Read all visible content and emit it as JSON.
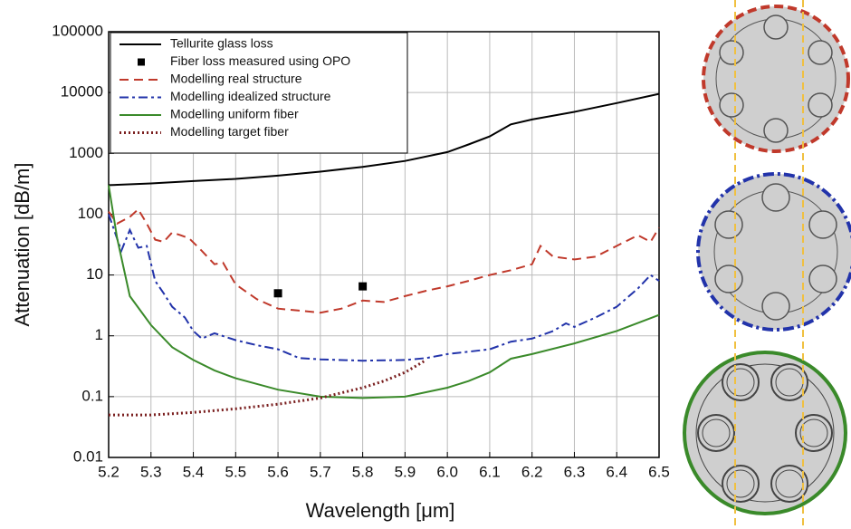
{
  "chart_data": {
    "type": "line",
    "xlabel": "Wavelength [μm]",
    "ylabel": "Attenuation [dB/m]",
    "xlim": [
      5.2,
      6.5
    ],
    "xticks": [
      5.2,
      5.3,
      5.4,
      5.5,
      5.6,
      5.7,
      5.8,
      5.9,
      {
        "value": 6,
        "label": "6.0"
      },
      6.1,
      6.2,
      6.3,
      6.4,
      6.5
    ],
    "ylim": [
      0.01,
      100000
    ],
    "ylog": true,
    "yticks": [
      0.01,
      0.1,
      1,
      10,
      100,
      1000,
      10000,
      100000
    ],
    "grid": true,
    "legend": "upper left",
    "series": [
      {
        "name": "Tellurite glass loss",
        "color": "#000000",
        "style": "solid",
        "x": [
          5.2,
          5.3,
          5.4,
          5.5,
          5.6,
          5.7,
          5.8,
          5.9,
          6.0,
          6.05,
          6.1,
          6.15,
          6.2,
          6.3,
          6.4,
          6.5
        ],
        "values": [
          300,
          320,
          350,
          380,
          430,
          500,
          600,
          750,
          1050,
          1400,
          1900,
          3000,
          3600,
          4800,
          6700,
          9500
        ]
      },
      {
        "name": "Fiber loss measured using OPO",
        "color": "#000000",
        "style": "marker",
        "x": [
          5.6,
          5.8
        ],
        "values": [
          5,
          6.5
        ]
      },
      {
        "name": "Modelling real structure",
        "color": "#c0392b",
        "style": "dashed",
        "x": [
          5.2,
          5.22,
          5.25,
          5.27,
          5.29,
          5.31,
          5.33,
          5.35,
          5.37,
          5.39,
          5.42,
          5.45,
          5.47,
          5.5,
          5.55,
          5.6,
          5.65,
          5.7,
          5.75,
          5.8,
          5.85,
          5.9,
          5.95,
          6.0,
          6.05,
          6.1,
          6.15,
          6.2,
          6.22,
          6.25,
          6.3,
          6.35,
          6.4,
          6.45,
          6.48,
          6.5
        ],
        "values": [
          110,
          70,
          90,
          120,
          70,
          38,
          35,
          50,
          45,
          40,
          25,
          15,
          16,
          7,
          4,
          2.8,
          2.6,
          2.4,
          2.8,
          3.8,
          3.6,
          4.5,
          5.5,
          6.5,
          8,
          10,
          12,
          15,
          30,
          20,
          18,
          20,
          30,
          45,
          35,
          60
        ]
      },
      {
        "name": "Modelling idealized structure",
        "color": "#2233aa",
        "style": "dash-dot",
        "x": [
          5.2,
          5.23,
          5.25,
          5.27,
          5.29,
          5.31,
          5.33,
          5.35,
          5.38,
          5.4,
          5.42,
          5.45,
          5.5,
          5.55,
          5.6,
          5.65,
          5.7,
          5.8,
          5.9,
          5.95,
          6.0,
          6.1,
          6.15,
          6.2,
          6.25,
          6.28,
          6.3,
          6.35,
          6.4,
          6.45,
          6.48,
          6.5
        ],
        "values": [
          100,
          25,
          55,
          28,
          30,
          8,
          5,
          3,
          2,
          1.2,
          0.9,
          1.1,
          0.85,
          0.7,
          0.6,
          0.43,
          0.41,
          0.39,
          0.4,
          0.43,
          0.5,
          0.6,
          0.8,
          0.9,
          1.2,
          1.6,
          1.4,
          2,
          3,
          6,
          10,
          8
        ]
      },
      {
        "name": "Modelling uniform fiber",
        "color": "#3a8a2a",
        "style": "solid",
        "x": [
          5.2,
          5.22,
          5.25,
          5.3,
          5.35,
          5.4,
          5.45,
          5.5,
          5.6,
          5.7,
          5.8,
          5.9,
          6.0,
          6.05,
          6.1,
          6.15,
          6.2,
          6.3,
          6.4,
          6.5
        ],
        "values": [
          300,
          40,
          4.5,
          1.5,
          0.65,
          0.4,
          0.27,
          0.2,
          0.13,
          0.1,
          0.095,
          0.1,
          0.14,
          0.18,
          0.25,
          0.42,
          0.5,
          0.75,
          1.2,
          2.2
        ]
      },
      {
        "name": "Modelling target fiber",
        "color": "#7a1f1f",
        "style": "dotted",
        "x": [
          5.2,
          5.3,
          5.4,
          5.5,
          5.6,
          5.7,
          5.8,
          5.85,
          5.9,
          5.95
        ],
        "values": [
          0.05,
          0.05,
          0.055,
          0.063,
          0.075,
          0.095,
          0.14,
          0.18,
          0.25,
          0.4
        ]
      }
    ]
  }
}
